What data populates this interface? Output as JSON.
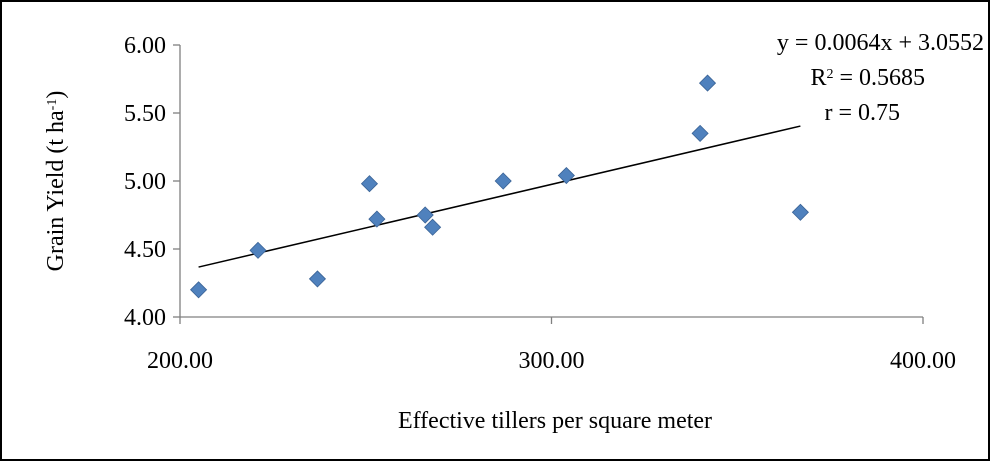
{
  "chart_data": {
    "type": "scatter",
    "title": "",
    "xlabel": "Effective tillers per square meter",
    "ylabel_main": "Grain Yield (t ha",
    "ylabel_sup": "-1",
    "ylabel_close": ")",
    "xlim": [
      200,
      400
    ],
    "ylim": [
      4.0,
      6.0
    ],
    "x_ticks": [
      200,
      300,
      400
    ],
    "y_ticks": [
      4.0,
      4.5,
      5.0,
      5.5,
      6.0
    ],
    "x_tick_labels": [
      "200.00",
      "300.00",
      "400.00"
    ],
    "y_tick_labels": [
      "4.00",
      "4.50",
      "5.00",
      "5.50",
      "6.00"
    ],
    "grid": false,
    "marker_color": "#4F81BD",
    "marker_shape": "diamond",
    "points": [
      {
        "x": 205,
        "y": 4.2
      },
      {
        "x": 221,
        "y": 4.49
      },
      {
        "x": 237,
        "y": 4.28
      },
      {
        "x": 251,
        "y": 4.98
      },
      {
        "x": 253,
        "y": 4.72
      },
      {
        "x": 266,
        "y": 4.75
      },
      {
        "x": 268,
        "y": 4.66
      },
      {
        "x": 287,
        "y": 5.0
      },
      {
        "x": 304,
        "y": 5.04
      },
      {
        "x": 340,
        "y": 5.35
      },
      {
        "x": 342,
        "y": 5.72
      },
      {
        "x": 367,
        "y": 4.77
      }
    ],
    "trendline": {
      "type": "linear",
      "slope": 0.0064,
      "intercept": 3.0552,
      "x_range": [
        205,
        367
      ],
      "color": "#000000"
    },
    "annotations": {
      "equation": "y = 0.0064x + 3.0552",
      "r2_prefix": "R",
      "r2_sup": "2",
      "r2_value": " = 0.5685",
      "r": "r = 0.75"
    }
  }
}
